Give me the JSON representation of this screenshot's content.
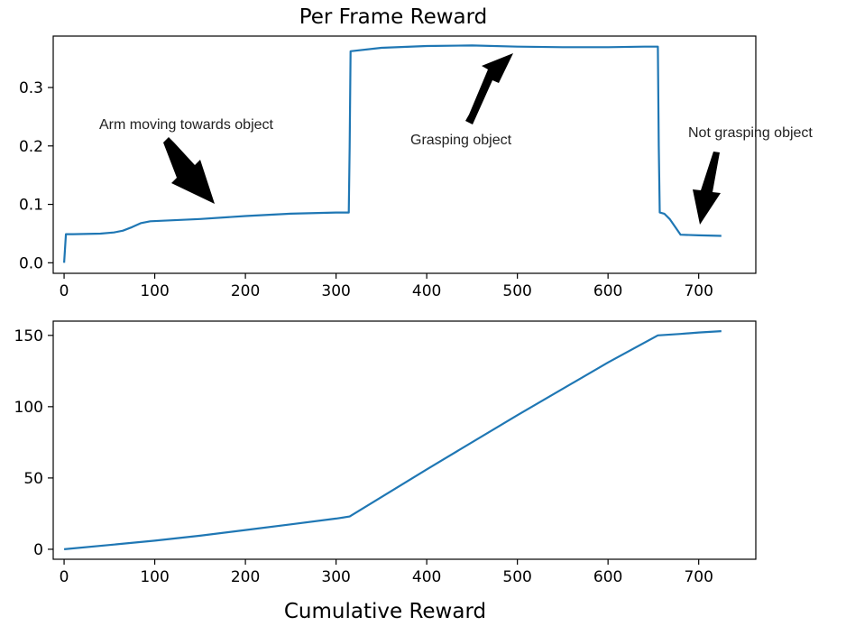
{
  "chart_data": [
    {
      "type": "line",
      "title": "Per Frame Reward",
      "xlabel": "",
      "ylabel": "",
      "xlim": [
        -12,
        763
      ],
      "ylim": [
        -0.018,
        0.388
      ],
      "xticks": [
        0,
        100,
        200,
        300,
        400,
        500,
        600,
        700
      ],
      "yticks": [
        0.0,
        0.1,
        0.2,
        0.3
      ],
      "ytick_labels": [
        "0.0",
        "0.1",
        "0.2",
        "0.3"
      ],
      "grid": false,
      "color": "#1f77b4",
      "series": [
        {
          "x": [
            0,
            2,
            10,
            40,
            55,
            65,
            75,
            85,
            95,
            150,
            200,
            250,
            300,
            314,
            315,
            316,
            350,
            400,
            450,
            500,
            550,
            600,
            640,
            655,
            656,
            657,
            662,
            668,
            680,
            700,
            725
          ],
          "y": [
            0.0,
            0.049,
            0.049,
            0.05,
            0.052,
            0.055,
            0.061,
            0.068,
            0.071,
            0.075,
            0.08,
            0.084,
            0.086,
            0.086,
            0.2,
            0.362,
            0.368,
            0.371,
            0.372,
            0.37,
            0.369,
            0.369,
            0.37,
            0.37,
            0.2,
            0.086,
            0.084,
            0.075,
            0.048,
            0.047,
            0.046
          ]
        }
      ],
      "annotations": [
        {
          "text": "Arm moving towards object",
          "x": 150,
          "y": 0.085
        },
        {
          "text": "Grasping object",
          "x": 475,
          "y": 0.36
        },
        {
          "text": "Not grasping object",
          "x": 690,
          "y": 0.065
        }
      ]
    },
    {
      "type": "line",
      "title": "",
      "xlabel": "Cumulative Reward",
      "ylabel": "",
      "xlim": [
        -12,
        763
      ],
      "ylim": [
        -7,
        160
      ],
      "xticks": [
        0,
        100,
        200,
        300,
        400,
        500,
        600,
        700
      ],
      "yticks": [
        0,
        50,
        100,
        150
      ],
      "grid": false,
      "color": "#1f77b4",
      "series": [
        {
          "x": [
            0,
            50,
            100,
            150,
            200,
            250,
            300,
            315,
            400,
            500,
            600,
            655,
            680,
            700,
            725
          ],
          "y": [
            0,
            3,
            6,
            9.5,
            13.5,
            17.5,
            21.5,
            23,
            56,
            94,
            131,
            150,
            151,
            152,
            153
          ]
        }
      ]
    }
  ]
}
